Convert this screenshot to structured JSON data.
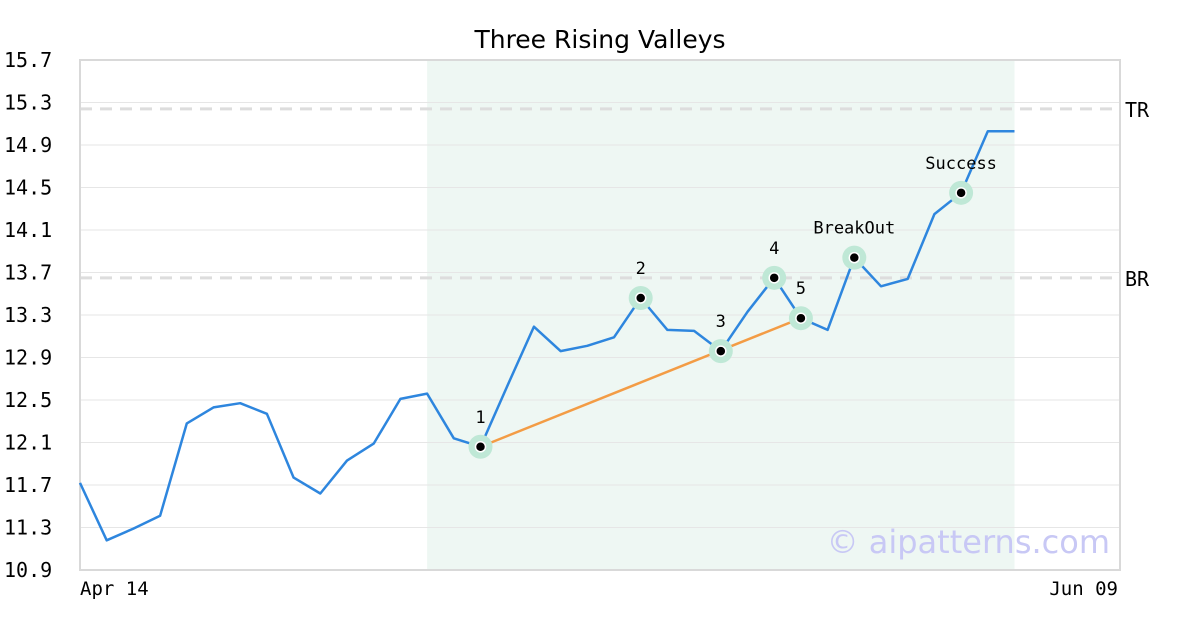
{
  "chart_data": {
    "type": "line",
    "title": "Three Rising Valleys",
    "xlabel": "",
    "ylabel": "",
    "x_tick_labels": [
      "Apr 14",
      "Jun 09"
    ],
    "y_ticks": [
      "10.9",
      "11.3",
      "11.7",
      "12.1",
      "12.5",
      "12.9",
      "13.3",
      "13.7",
      "14.1",
      "14.5",
      "14.9",
      "15.3",
      "15.7"
    ],
    "ylim": [
      10.9,
      15.7
    ],
    "grid": true,
    "series": [
      {
        "color": "#2e86de",
        "values": [
          11.72,
          11.18,
          11.29,
          11.41,
          12.28,
          12.43,
          12.47,
          12.37,
          11.77,
          11.62,
          11.93,
          12.09,
          12.51,
          12.56,
          12.14,
          12.06,
          12.63,
          13.19,
          12.96,
          13.01,
          13.09,
          13.46,
          13.16,
          13.15,
          12.96,
          13.33,
          13.65,
          13.27,
          13.16,
          13.84,
          13.57,
          13.64,
          14.25,
          14.45,
          15.03,
          15.03
        ]
      }
    ],
    "highlight_range": [
      13,
      35
    ],
    "highlight_color": "#eef7f3",
    "trend_line": {
      "color": "#f39c45",
      "from_index": 15,
      "to_index": 27
    },
    "reference_lines": [
      {
        "label": "TR",
        "value": 15.24
      },
      {
        "label": "BR",
        "value": 13.65
      }
    ],
    "markers": [
      {
        "index": 15,
        "label": "1"
      },
      {
        "index": 21,
        "label": "2"
      },
      {
        "index": 24,
        "label": "3"
      },
      {
        "index": 26,
        "label": "4"
      },
      {
        "index": 27,
        "label": "5"
      },
      {
        "index": 29,
        "label": "BreakOut"
      },
      {
        "index": 33,
        "label": "Success"
      }
    ],
    "marker_halo_color": "#bfe8d6",
    "watermark": "© aipatterns.com",
    "watermark_color": "#c8c8f5"
  }
}
